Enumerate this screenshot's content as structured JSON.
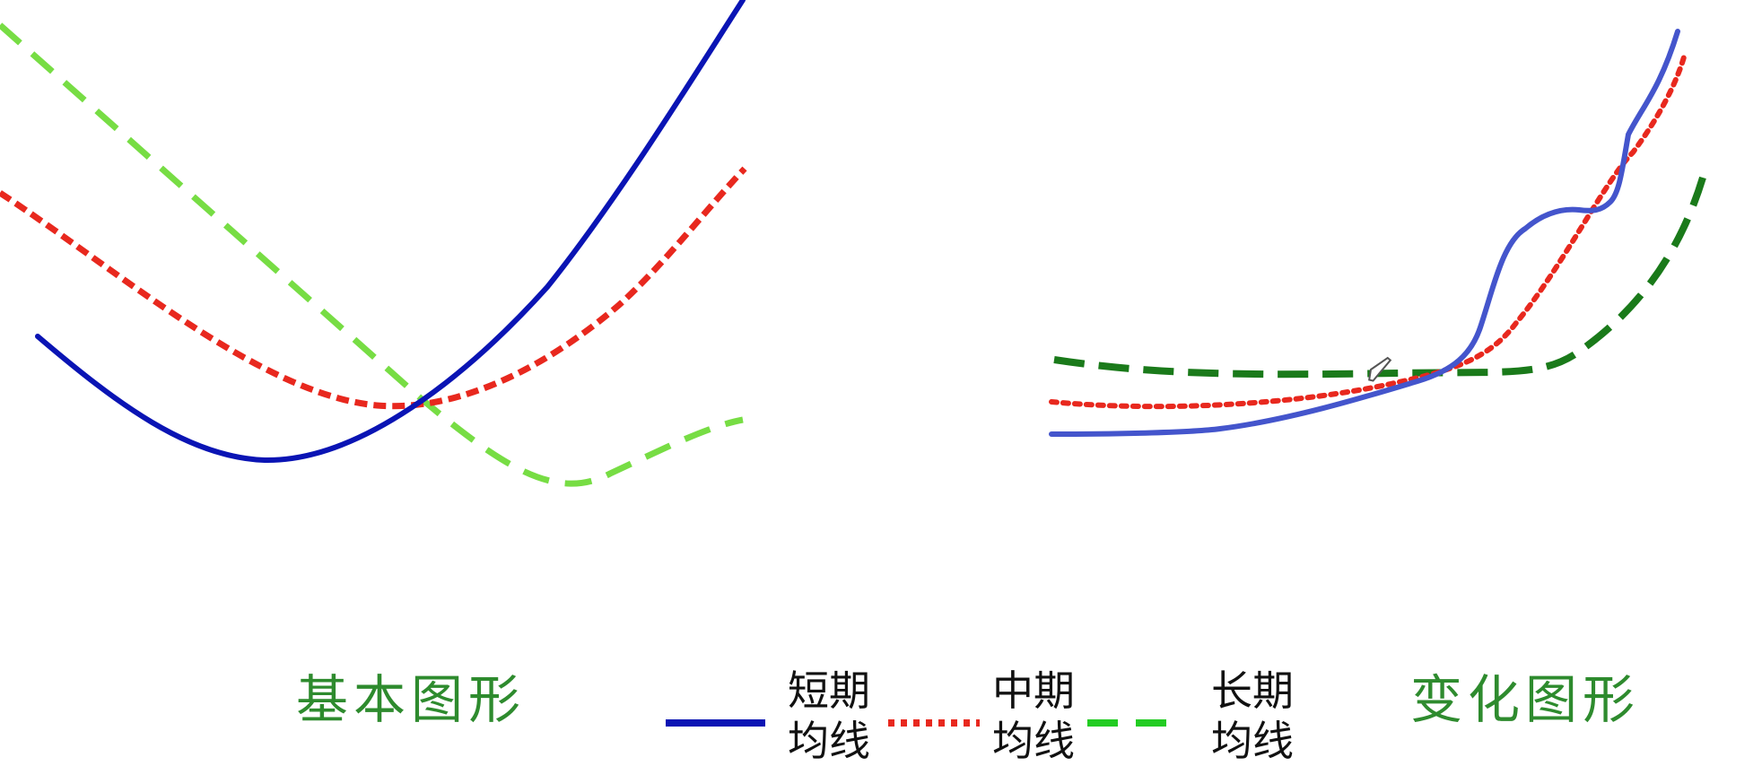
{
  "captions": {
    "basic": "基本图形",
    "variant": "变化图形"
  },
  "legend": [
    {
      "id": "short",
      "line1": "短期",
      "line2": "均线",
      "color": "#0a14b4",
      "style": "solid"
    },
    {
      "id": "mid",
      "line1": "中期",
      "line2": "均线",
      "color": "#e8281e",
      "style": "dotted"
    },
    {
      "id": "long",
      "line1": "长期",
      "line2": "均线",
      "color": "#22cc22",
      "style": "dashed"
    }
  ],
  "panels": {
    "basic": {
      "description_note": "",
      "short_color": "#0a14b4",
      "mid_color": "#e8281e",
      "long_color": "#77dd44"
    },
    "variant": {
      "short_color": "#4455cc",
      "mid_color": "#e8281e",
      "long_color": "#1a7a1a"
    }
  },
  "icons": {
    "cursor": "pen-cursor-icon"
  }
}
